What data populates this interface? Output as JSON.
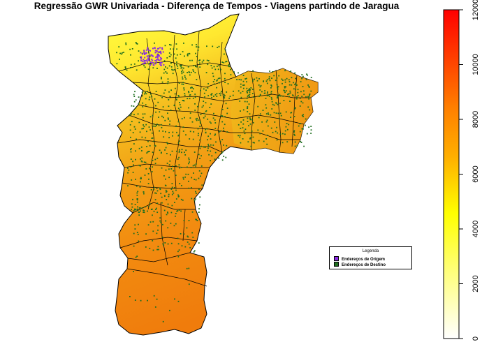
{
  "title": "Regressão GWR Univariada - Diferença de Tempos - Viagens partindo de Jaragua",
  "legend": {
    "title": "Legenda",
    "items": [
      {
        "label": "Endereços de Origem",
        "color": "#8a2be2"
      },
      {
        "label": "Endereços de Destino",
        "color": "#1f6e1f"
      }
    ]
  },
  "colorbar": {
    "min": 0,
    "max": 12000,
    "ticks": [
      0,
      2000,
      4000,
      6000,
      8000,
      10000,
      12000
    ],
    "colors": [
      "#ffffff",
      "#ffff66",
      "#ffcc00",
      "#ff8c00",
      "#ff3300",
      "#ff0000"
    ]
  },
  "colors": {
    "boundary": "#000000",
    "high_north": "#ffff33",
    "mid": "#f0b000",
    "south": "#f28a10"
  }
}
